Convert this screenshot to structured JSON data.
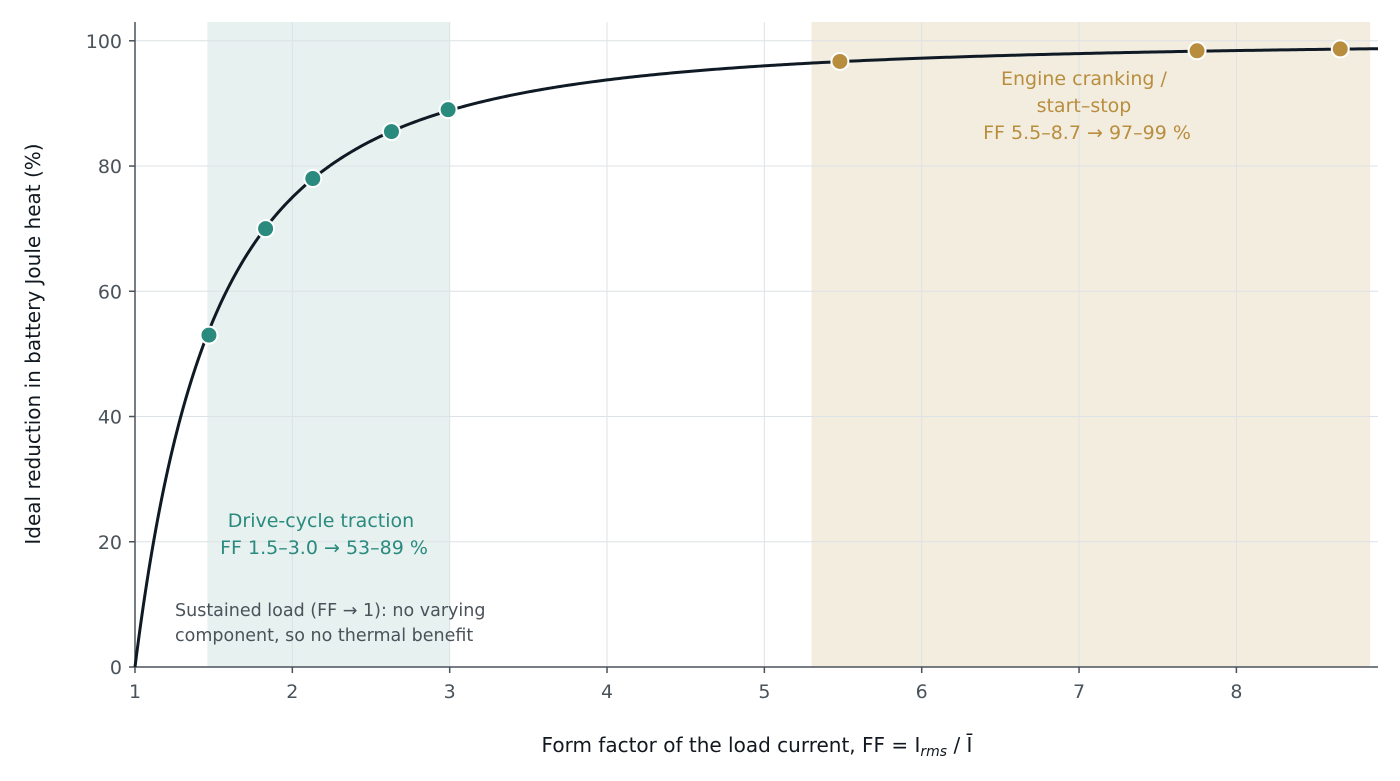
{
  "chart_data": {
    "type": "line",
    "xlabel": "Form factor of the load current,  FF = I",
    "xlabel_sub": "rms",
    "xlabel_tail": " / Ī",
    "ylabel": "Ideal reduction in battery Joule heat (%)",
    "xlim": [
      1,
      8.9
    ],
    "ylim": [
      0,
      103
    ],
    "x_ticks": [
      1,
      2,
      3,
      4,
      5,
      6,
      7,
      8
    ],
    "y_ticks": [
      0,
      20,
      40,
      60,
      80,
      100
    ],
    "grid": true,
    "curve": {
      "formula": "100 * (1 - 1/FF^2)",
      "color": "#0f1a24"
    },
    "regions": [
      {
        "name": "drive-cycle",
        "x": [
          1.46,
          3.0
        ],
        "color": "#e6f1f0"
      },
      {
        "name": "cranking",
        "x": [
          5.3,
          8.85
        ],
        "color": "#f3ede0"
      }
    ],
    "series": [
      {
        "color": "#2a8a7e",
        "points": [
          {
            "x": 1.47,
            "y": 53
          },
          {
            "x": 1.83,
            "y": 70
          },
          {
            "x": 2.13,
            "y": 78
          },
          {
            "x": 2.63,
            "y": 85.5
          },
          {
            "x": 2.99,
            "y": 89
          }
        ]
      },
      {
        "color": "#b88e3e",
        "points": [
          {
            "x": 5.48,
            "y": 96.7
          },
          {
            "x": 7.75,
            "y": 98.4
          },
          {
            "x": 8.66,
            "y": 98.7
          }
        ]
      }
    ],
    "annotations": {
      "drive_cycle": [
        "Drive-cycle traction",
        "FF 1.5–3.0 → 53–89 %"
      ],
      "cranking": [
        "Engine cranking /",
        "start–stop",
        "FF 5.5–8.7 → 97–99 %"
      ],
      "sustained": [
        "Sustained load (FF → 1): no varying",
        "component, so no thermal benefit"
      ]
    }
  }
}
